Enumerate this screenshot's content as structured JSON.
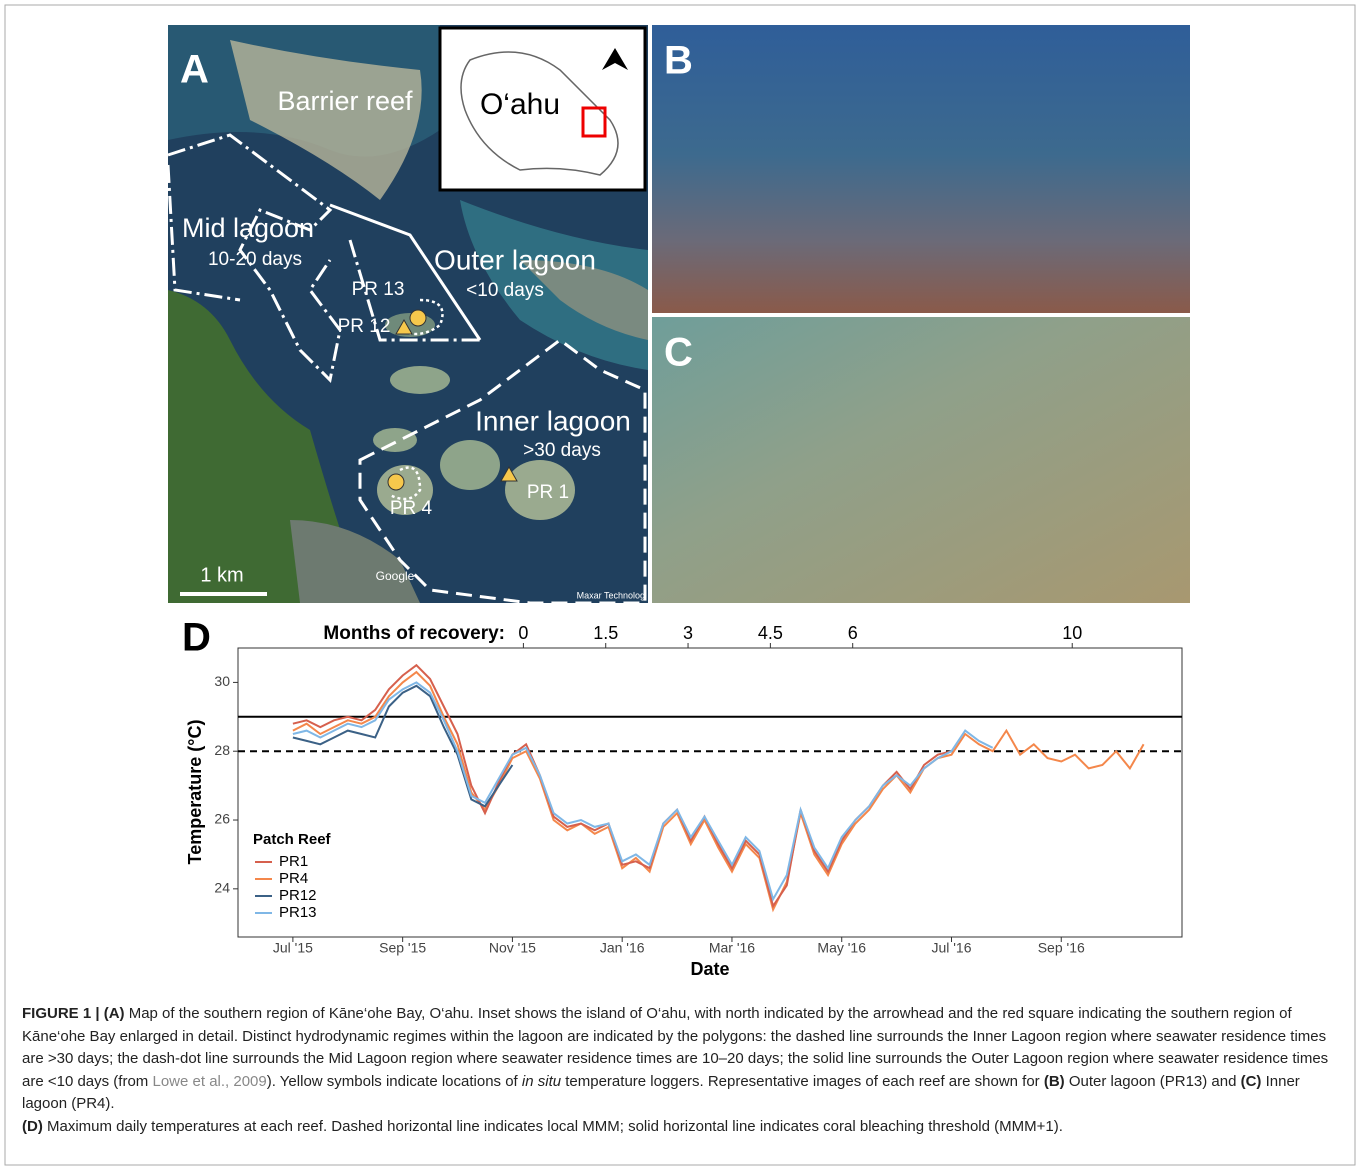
{
  "panel_a": {
    "letter": "A",
    "barrier": "Barrier reef",
    "island": "O‘ahu",
    "mid": "Mid lagoon",
    "mid_days": "10-20 days",
    "outer": "Outer lagoon",
    "outer_days": "<10 days",
    "pr13": "PR 13",
    "pr12": "PR 12",
    "inner": "Inner lagoon",
    "inner_days": ">30 days",
    "pr1": "PR 1",
    "pr4": "PR 4",
    "scale": "1 km",
    "google": "Google",
    "credit": "Maxar Technolog"
  },
  "panel_b": {
    "letter": "B"
  },
  "panel_c": {
    "letter": "C"
  },
  "chart_data": {
    "type": "line",
    "panel": "D",
    "x_label": "Date",
    "y_label": "Temperature (°C)",
    "x2_label": "Months of recovery:",
    "xlim": [
      -1,
      16.2
    ],
    "xticks": [
      {
        "value": 0,
        "label": "Jul '15"
      },
      {
        "value": 2,
        "label": "Sep '15"
      },
      {
        "value": 4,
        "label": "Nov '15"
      },
      {
        "value": 6,
        "label": "Jan '16"
      },
      {
        "value": 8,
        "label": "Mar '16"
      },
      {
        "value": 10,
        "label": "May '16"
      },
      {
        "value": 12,
        "label": "Jul '16"
      },
      {
        "value": 14,
        "label": "Sep '16"
      }
    ],
    "x2lim": [
      -5.2,
      12
    ],
    "x2ticks": [
      0,
      1.5,
      3,
      4.5,
      6,
      10
    ],
    "ylim": [
      22.6,
      31.0
    ],
    "yticks": [
      24,
      26,
      28,
      30
    ],
    "hlines": [
      {
        "value": 29,
        "style": "solid"
      },
      {
        "value": 28,
        "style": "dashed"
      }
    ],
    "legend_title": "Patch Reef",
    "legend": "bottom-left",
    "x": [
      0,
      0.25,
      0.5,
      0.75,
      1,
      1.25,
      1.5,
      1.75,
      2,
      2.25,
      2.5,
      2.75,
      3,
      3.25,
      3.5,
      3.75,
      4,
      4.25,
      4.5,
      4.75,
      5,
      5.25,
      5.5,
      5.75,
      6,
      6.25,
      6.5,
      6.75,
      7,
      7.25,
      7.5,
      7.75,
      8,
      8.25,
      8.5,
      8.75,
      9,
      9.25,
      9.5,
      9.75,
      10,
      10.25,
      10.5,
      10.75,
      11,
      11.25,
      11.5,
      11.75,
      12,
      12.25,
      12.5,
      12.75,
      13,
      13.25,
      13.5,
      13.75,
      14,
      14.25,
      14.5,
      14.75,
      15,
      15.25,
      15.5
    ],
    "series": [
      {
        "name": "PR1",
        "color": "#d6604d",
        "values": [
          28.8,
          28.9,
          28.7,
          28.9,
          29.0,
          28.9,
          29.2,
          29.8,
          30.2,
          30.5,
          30.1,
          29.3,
          28.5,
          27.0,
          26.2,
          27.1,
          27.9,
          28.2,
          27.3,
          26.1,
          25.8,
          25.9,
          25.7,
          25.9,
          24.7,
          24.8,
          24.6,
          25.9,
          26.3,
          25.4,
          26.1,
          25.3,
          24.6,
          25.4,
          25.0,
          23.5,
          24.1,
          26.3,
          25.1,
          24.5,
          25.4,
          26.0,
          26.4,
          27.0,
          27.4,
          26.9,
          27.6,
          27.9,
          28.0,
          null,
          null,
          null,
          null,
          null,
          null,
          null,
          null,
          null,
          null,
          null,
          null,
          null,
          null
        ]
      },
      {
        "name": "PR4",
        "color": "#f4874b",
        "values": [
          28.6,
          28.8,
          28.5,
          28.7,
          28.9,
          28.8,
          29.0,
          29.6,
          30.0,
          30.3,
          29.9,
          29.0,
          28.2,
          26.8,
          26.3,
          27.0,
          27.8,
          28.0,
          27.2,
          26.0,
          25.7,
          25.9,
          25.6,
          25.8,
          24.6,
          24.9,
          24.5,
          25.8,
          26.2,
          25.3,
          26.0,
          25.2,
          24.5,
          25.3,
          24.9,
          23.4,
          24.2,
          26.2,
          25.0,
          24.4,
          25.3,
          25.9,
          26.3,
          26.9,
          27.3,
          26.8,
          27.5,
          27.8,
          27.9,
          28.5,
          28.2,
          28.0,
          28.6,
          27.9,
          28.2,
          27.8,
          27.7,
          27.9,
          27.5,
          27.6,
          28.0,
          27.5,
          28.2
        ]
      },
      {
        "name": "PR12",
        "color": "#3b6186",
        "values": [
          28.4,
          28.3,
          28.2,
          28.4,
          28.6,
          28.5,
          28.4,
          29.3,
          29.7,
          29.9,
          29.6,
          28.7,
          27.9,
          26.6,
          26.4,
          27.0,
          27.6,
          null,
          null,
          null,
          null,
          null,
          null,
          null,
          null,
          null,
          null,
          null,
          null,
          null,
          null,
          null,
          null,
          null,
          null,
          null,
          null,
          null,
          null,
          null,
          null,
          null,
          null,
          null,
          null,
          null,
          null,
          null,
          null,
          null,
          null,
          null,
          null,
          null,
          null,
          null,
          null,
          null,
          null,
          null,
          null,
          null,
          null
        ]
      },
      {
        "name": "PR13",
        "color": "#7fb7e6",
        "values": [
          28.5,
          28.6,
          28.4,
          28.6,
          28.8,
          28.7,
          28.9,
          29.5,
          29.8,
          30.0,
          29.7,
          28.9,
          28.0,
          26.7,
          26.5,
          27.2,
          27.9,
          28.1,
          27.3,
          26.2,
          25.9,
          26.0,
          25.8,
          25.9,
          24.8,
          25.0,
          24.7,
          25.9,
          26.3,
          25.5,
          26.1,
          25.4,
          24.7,
          25.5,
          25.1,
          23.7,
          24.4,
          26.3,
          25.2,
          24.6,
          25.5,
          26.0,
          26.4,
          27.0,
          27.3,
          27.0,
          27.5,
          27.8,
          28.0,
          28.6,
          28.3,
          28.1,
          null,
          null,
          null,
          null,
          null,
          null,
          null,
          null,
          null,
          null,
          null
        ]
      }
    ]
  },
  "caption": [
    [
      {
        "text": "FIGURE 1 | (A)",
        "style": "bold"
      },
      {
        "text": " Map of the southern region of Kāne‘ohe Bay, O‘ahu. Inset shows the island of O‘ahu, with north indicated by the arrowhead and the red square indicating the southern region of Kāne‘ohe Bay enlarged in detail. Distinct hydrodynamic regimes within the lagoon are indicated by the polygons: the dashed line surrounds the Inner Lagoon region where seawater residence times are >30 days; the dash-dot line surrounds the Mid Lagoon region where seawater residence times are 10–20 days; the solid line surrounds the Outer Lagoon region where seawater residence times are <10 days (from ",
        "style": "normal"
      },
      {
        "text": "Lowe et al., 2009",
        "style": "link"
      },
      {
        "text": "). Yellow symbols indicate locations of ",
        "style": "normal"
      },
      {
        "text": "in situ",
        "style": "italic"
      },
      {
        "text": " temperature loggers. Representative images of each reef are shown for ",
        "style": "normal"
      },
      {
        "text": "(B)",
        "style": "bold"
      },
      {
        "text": " Outer lagoon (PR13) and ",
        "style": "normal"
      },
      {
        "text": "(C)",
        "style": "bold"
      },
      {
        "text": " Inner lagoon (PR4).",
        "style": "normal"
      }
    ],
    [
      {
        "text": "(D)",
        "style": "bold"
      },
      {
        "text": " Maximum daily temperatures at each reef. Dashed horizontal line indicates local MMM; solid horizontal line indicates coral bleaching threshold (MMM+1).",
        "style": "normal"
      }
    ]
  ]
}
